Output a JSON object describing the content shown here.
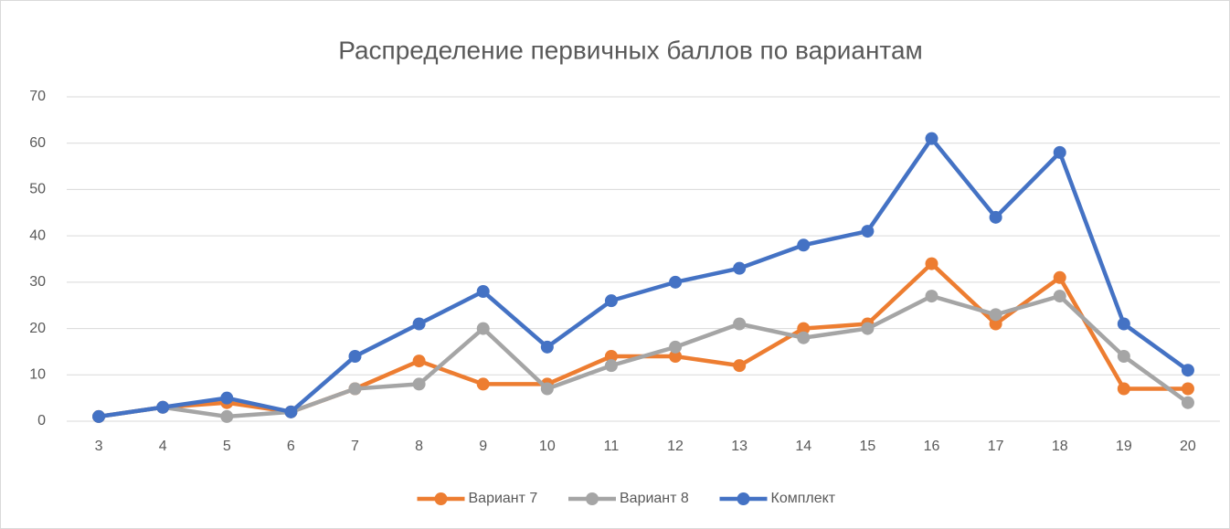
{
  "chart_data": {
    "type": "line",
    "title": "Распределение первичных баллов по вариантам",
    "categories": [
      "3",
      "4",
      "5",
      "6",
      "7",
      "8",
      "9",
      "10",
      "11",
      "12",
      "13",
      "14",
      "15",
      "16",
      "17",
      "18",
      "19",
      "20"
    ],
    "series": [
      {
        "name": "Вариант 7",
        "color": "#ed7d31",
        "values": [
          1,
          3,
          4,
          2,
          7,
          13,
          8,
          8,
          14,
          14,
          12,
          20,
          21,
          34,
          21,
          31,
          7,
          7
        ]
      },
      {
        "name": "Вариант 8",
        "color": "#a5a5a5",
        "values": [
          1,
          3,
          1,
          2,
          7,
          8,
          20,
          7,
          12,
          16,
          21,
          18,
          20,
          27,
          23,
          27,
          14,
          4
        ]
      },
      {
        "name": "Комплект",
        "color": "#4472c4",
        "values": [
          1,
          3,
          5,
          2,
          14,
          21,
          28,
          16,
          26,
          30,
          33,
          38,
          41,
          61,
          44,
          58,
          21,
          11
        ]
      }
    ],
    "ylim": [
      0,
      70
    ],
    "yticks": [
      0,
      10,
      20,
      30,
      40,
      50,
      60,
      70
    ],
    "grid": true,
    "legend": "bottom"
  }
}
